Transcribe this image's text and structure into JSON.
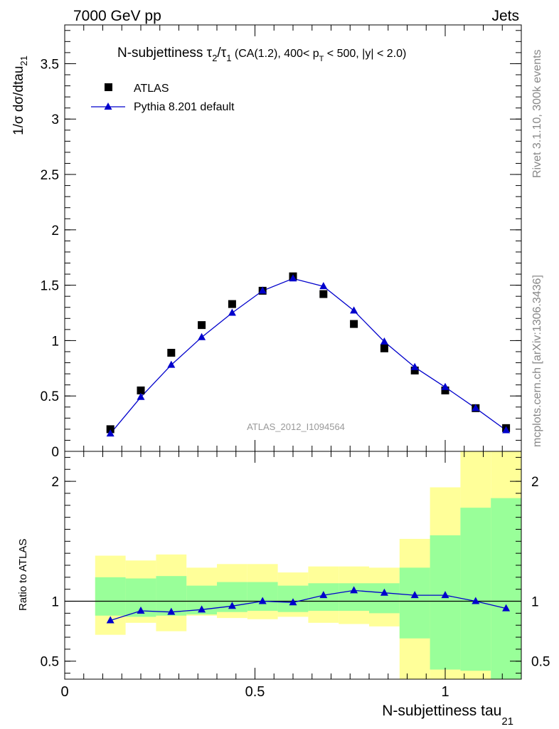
{
  "header": {
    "left": "7000 GeV pp",
    "right": "Jets"
  },
  "side_labels": {
    "rivet": "Rivet 3.1.10,  300k events",
    "mcplots": "mcplots.cern.ch [arXiv:1306.3436]"
  },
  "chart_data": [
    {
      "type": "scatter",
      "title_parts": {
        "prefix": "N-subjettiness ",
        "tau": "τ",
        "sub2": "2",
        "slash": "/",
        "sub1": "1",
        "cuts_a": " (CA(1.2), 400< p",
        "subT": "T",
        "cuts_b": " < 500, |y| < 2.0)"
      },
      "ylabel_main": "1/σ dσ/dtau",
      "ylabel_sub": "21",
      "watermark": "ATLAS_2012_I1094564",
      "xlim": [
        0,
        1.2
      ],
      "ylim": [
        0,
        3.85
      ],
      "yticks": [
        0,
        0.5,
        1,
        1.5,
        2,
        2.5,
        3,
        3.5
      ],
      "ytick_labels": [
        "0",
        "0.5",
        "1",
        "1.5",
        "2",
        "2.5",
        "3",
        "3.5"
      ],
      "legend_position": "top-left",
      "series": [
        {
          "name": "ATLAS",
          "marker": "square",
          "color": "#000000",
          "x": [
            0.12,
            0.2,
            0.28,
            0.36,
            0.44,
            0.52,
            0.6,
            0.68,
            0.76,
            0.84,
            0.92,
            1.0,
            1.08,
            1.16
          ],
          "y": [
            0.2,
            0.55,
            0.89,
            1.14,
            1.33,
            1.45,
            1.58,
            1.42,
            1.15,
            0.93,
            0.73,
            0.55,
            0.39,
            0.21
          ]
        },
        {
          "name": "Pythia 8.201 default",
          "marker": "triangle",
          "color": "#0000cc",
          "x": [
            0.12,
            0.2,
            0.28,
            0.36,
            0.44,
            0.52,
            0.6,
            0.68,
            0.76,
            0.84,
            0.92,
            1.0,
            1.08,
            1.16
          ],
          "y": [
            0.16,
            0.49,
            0.78,
            1.03,
            1.25,
            1.45,
            1.56,
            1.49,
            1.27,
            0.99,
            0.76,
            0.58,
            0.39,
            0.19
          ]
        }
      ]
    },
    {
      "type": "line",
      "ylabel": "Ratio to ATLAS",
      "xlabel_main": "N-subjettiness tau",
      "xlabel_sub": "21",
      "xlim": [
        0,
        1.2
      ],
      "ylim": [
        0.35,
        2.25
      ],
      "xticks": [
        0,
        0.5,
        1
      ],
      "xtick_labels": [
        "0",
        "0.5",
        "1"
      ],
      "yticks": [
        0.5,
        1,
        2
      ],
      "ytick_labels": [
        "0.5",
        "1",
        "2"
      ],
      "reference": 1,
      "bands": {
        "bin_edges": [
          0.08,
          0.16,
          0.24,
          0.32,
          0.4,
          0.48,
          0.56,
          0.64,
          0.72,
          0.8,
          0.88,
          0.96,
          1.04,
          1.12,
          1.2
        ],
        "yellow_color": "#ffff99",
        "green_color": "#99ff99",
        "yellow_low": [
          0.72,
          0.82,
          0.75,
          0.88,
          0.86,
          0.85,
          0.87,
          0.82,
          0.81,
          0.79,
          0.2,
          0.2,
          0.2,
          0.2
        ],
        "yellow_high": [
          1.38,
          1.34,
          1.39,
          1.28,
          1.31,
          1.31,
          1.24,
          1.29,
          1.29,
          1.28,
          1.52,
          1.95,
          2.25,
          2.25
        ],
        "green_low": [
          0.88,
          0.87,
          0.88,
          0.89,
          0.91,
          0.92,
          0.91,
          0.92,
          0.92,
          0.9,
          0.69,
          0.43,
          0.42,
          0.3
        ],
        "green_high": [
          1.2,
          1.19,
          1.21,
          1.13,
          1.16,
          1.16,
          1.13,
          1.15,
          1.15,
          1.15,
          1.28,
          1.55,
          1.78,
          1.86
        ]
      },
      "series": [
        {
          "name": "Pythia 8.201 default",
          "marker": "triangle",
          "color": "#0000cc",
          "x": [
            0.12,
            0.2,
            0.28,
            0.36,
            0.44,
            0.52,
            0.6,
            0.68,
            0.76,
            0.84,
            0.92,
            1.0,
            1.08,
            1.16
          ],
          "y": [
            0.84,
            0.92,
            0.91,
            0.93,
            0.96,
            1.0,
            0.99,
            1.05,
            1.09,
            1.07,
            1.05,
            1.05,
            1.0,
            0.94
          ]
        }
      ]
    }
  ]
}
